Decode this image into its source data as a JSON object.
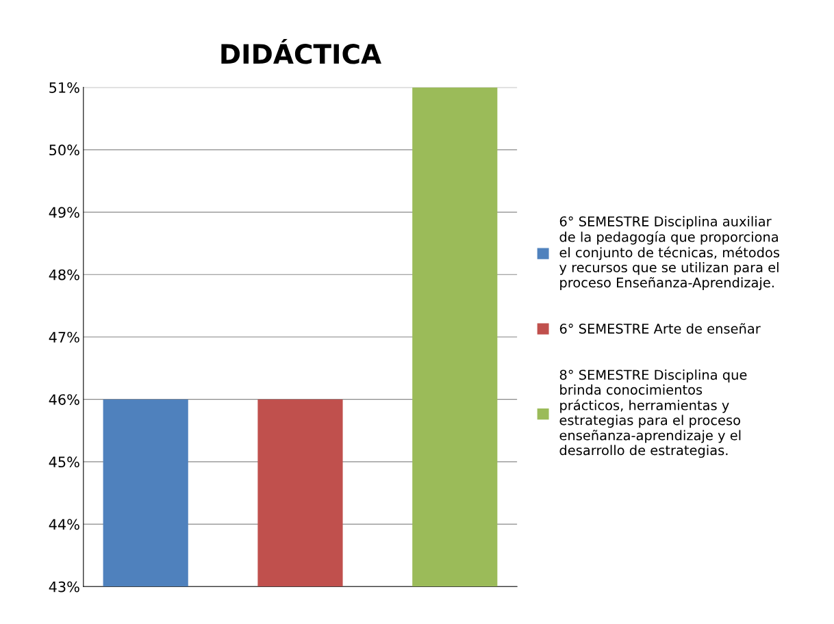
{
  "chart_data": {
    "type": "bar",
    "title": "DIDÁCTICA",
    "categories": [
      null,
      null,
      null
    ],
    "series": [
      {
        "name": "6° SEMESTRE Disciplina auxiliar\nde la pedagogía que proporciona\nel conjunto de técnicas, métodos\ny recursos que se utilizan para el\nproceso Enseñanza-Aprendizaje.",
        "color": "#4f81bd",
        "values": [
          46,
          null,
          null
        ]
      },
      {
        "name": "6° SEMESTRE Arte de enseñar",
        "color": "#c0504d",
        "values": [
          null,
          46,
          null
        ]
      },
      {
        "name": "8° SEMESTRE Disciplina que\nbrinda conocimientos\nprácticos, herramientas y\nestrategias para el proceso\nenseñanza-aprendizaje y el\ndesarrollo de estrategias.",
        "color": "#9bbb59",
        "values": [
          null,
          null,
          51
        ]
      }
    ],
    "ylim": [
      43,
      51
    ],
    "yticks": [
      {
        "value": 43,
        "label": "43%"
      },
      {
        "value": 44,
        "label": "44%"
      },
      {
        "value": 45,
        "label": "45%"
      },
      {
        "value": 46,
        "label": "46%"
      },
      {
        "value": 47,
        "label": "47%"
      },
      {
        "value": 48,
        "label": "48%"
      },
      {
        "value": 49,
        "label": "49%"
      },
      {
        "value": 50,
        "label": "50%"
      },
      {
        "value": 51,
        "label": "51%"
      }
    ],
    "grid": "y",
    "legend": "right"
  }
}
